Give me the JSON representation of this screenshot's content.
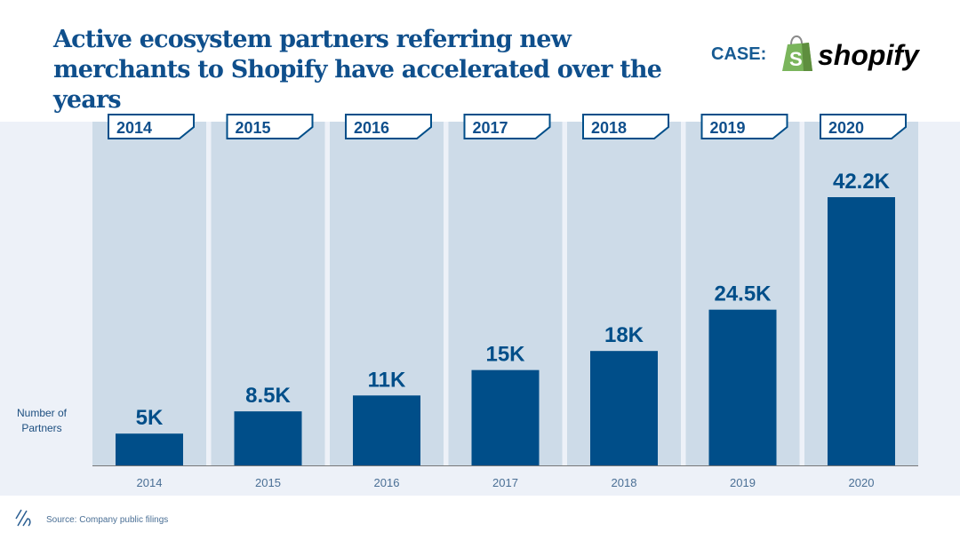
{
  "title": "Active ecosystem partners referring new merchants to Shopify have accelerated over the years",
  "case_label": "CASE:",
  "logo_text": "shopify",
  "source": "Source: Company public filings",
  "colors": {
    "bar": "#004e89",
    "column": "#cddbe8",
    "band": "#edf1f8",
    "title": "#0f4f8c",
    "logo_green": "#7ab55c"
  },
  "icons": {
    "brand_mark": "diagonal-lines-icon",
    "logo": "shopify-bag-icon"
  },
  "chart_data": {
    "type": "bar",
    "categories": [
      "2014",
      "2015",
      "2016",
      "2017",
      "2018",
      "2019",
      "2020"
    ],
    "values": [
      5,
      8.5,
      11,
      15,
      18,
      24.5,
      42.2
    ],
    "data_labels": [
      "5K",
      "8.5K",
      "11K",
      "15K",
      "18K",
      "24.5K",
      "42.2K"
    ],
    "ylabel": "Number of Partners",
    "ylim": [
      0,
      42.2
    ],
    "grid": false
  }
}
